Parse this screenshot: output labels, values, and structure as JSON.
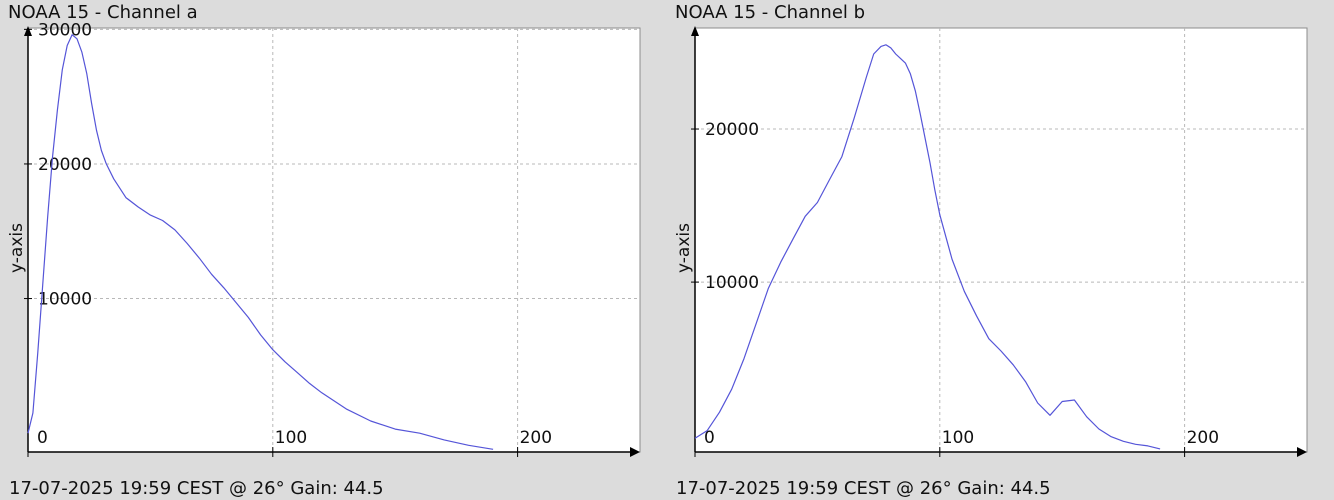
{
  "chart_data": [
    {
      "type": "line",
      "title": "NOAA 15 - Channel a",
      "footer": "17-07-2025 19:59 CEST @ 26° Gain: 44.5",
      "ylabel": "y-axis",
      "xlabel": "",
      "xlim": [
        0,
        250
      ],
      "ylim": [
        -1400,
        30100
      ],
      "x_ticks": [
        0,
        100,
        200
      ],
      "y_ticks": [
        10000,
        20000,
        30000
      ],
      "grid": true,
      "color": "#5555d8",
      "series": [
        {
          "x": [
            0,
            2,
            4,
            6,
            8,
            10,
            12,
            14,
            16,
            18,
            20,
            22,
            24,
            26,
            28,
            30,
            32,
            35,
            40,
            45,
            50,
            55,
            60,
            65,
            70,
            75,
            80,
            85,
            90,
            95,
            100,
            105,
            110,
            115,
            120,
            130,
            140,
            150,
            160,
            170,
            180,
            190
          ],
          "y": [
            0,
            1500,
            6000,
            11000,
            16000,
            20500,
            24000,
            27000,
            28800,
            29600,
            29300,
            28300,
            26700,
            24500,
            22500,
            21000,
            20000,
            18900,
            17500,
            16800,
            16200,
            15800,
            15100,
            14100,
            13000,
            11800,
            10800,
            9700,
            8600,
            7300,
            6200,
            5300,
            4500,
            3700,
            3000,
            1800,
            900,
            300,
            0,
            -500,
            -900,
            -1200
          ]
        }
      ]
    },
    {
      "type": "line",
      "title": "NOAA 15 - Channel b",
      "footer": "17-07-2025 19:59 CEST @ 26° Gain: 44.5",
      "ylabel": "y-axis",
      "xlabel": "",
      "xlim": [
        0,
        250
      ],
      "ylim": [
        -1100,
        26600
      ],
      "x_ticks": [
        0,
        100,
        200
      ],
      "y_ticks": [
        10000,
        20000
      ],
      "grid": true,
      "color": "#5555d8",
      "series": [
        {
          "x": [
            0,
            5,
            10,
            15,
            20,
            25,
            30,
            35,
            40,
            45,
            50,
            55,
            60,
            65,
            70,
            73,
            76,
            78,
            80,
            82,
            84,
            86,
            88,
            90,
            92,
            94,
            96,
            98,
            100,
            105,
            110,
            115,
            120,
            125,
            130,
            135,
            140,
            145,
            150,
            155,
            160,
            165,
            170,
            175,
            180,
            185,
            190
          ],
          "y": [
            -200,
            300,
            1500,
            3000,
            5000,
            7300,
            9600,
            11300,
            12800,
            14300,
            15200,
            16700,
            18200,
            20700,
            23400,
            24900,
            25400,
            25500,
            25300,
            24900,
            24600,
            24300,
            23600,
            22500,
            21000,
            19400,
            17800,
            16000,
            14400,
            11500,
            9400,
            7800,
            6300,
            5500,
            4600,
            3500,
            2100,
            1300,
            2200,
            2300,
            1200,
            400,
            -100,
            -400,
            -600,
            -700,
            -900
          ]
        }
      ]
    }
  ]
}
